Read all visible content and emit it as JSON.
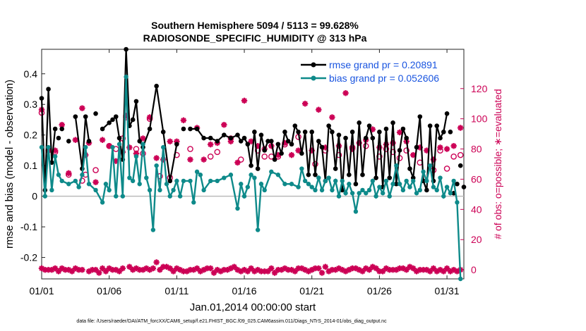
{
  "chart_data": {
    "type": "line",
    "title": "Southern Hemisphere 5094 / 5113 = 99.628%",
    "subtitle": "RADIOSONDE_SPECIFIC_HUMIDITY @ 313 hPa",
    "xlabel": "Jan.01,2014 00:00:00 start",
    "ylabel": "rmse and bias (model - observation)",
    "y2label": "# of obs: o=possible; ∗=evaluated",
    "footnote": "data file: /Users/raeder/DAI/ATM_forcXX/CAM6_setup/f.e21.FHIST_BGC.f09_025.CAM6assim.011/Diags_NTrS_2014-01/obs_diag_output.nc",
    "xlim": [
      0,
      31.25
    ],
    "ylim": [
      -0.27,
      0.48
    ],
    "y2lim": [
      -6,
      146
    ],
    "x_ticks": [
      0,
      5,
      10,
      15,
      20,
      25,
      30
    ],
    "x_tick_labels": [
      "01/01",
      "01/06",
      "01/11",
      "01/16",
      "01/21",
      "01/26",
      "01/31"
    ],
    "y_ticks": [
      -0.2,
      -0.1,
      0,
      0.1,
      0.2,
      0.3,
      0.4
    ],
    "y_tick_labels": [
      "-0.2",
      "-0.1",
      "0",
      "0.1",
      "0.2",
      "0.3",
      "0.4"
    ],
    "y2_ticks": [
      0,
      20,
      40,
      60,
      80,
      100,
      120
    ],
    "y2_tick_labels": [
      "0",
      "20",
      "40",
      "60",
      "80",
      "100",
      "120"
    ],
    "legend": {
      "position": "top-right"
    },
    "series": [
      {
        "name": "rmse grand pr = 0.20891",
        "color": "#000000",
        "axis": "left",
        "x": [
          0.0,
          0.25,
          0.5,
          0.75,
          1.0,
          1.25,
          1.5,
          2.0,
          2.5,
          3.0,
          3.25,
          3.5,
          4.0,
          4.5,
          5.0,
          5.25,
          5.5,
          5.75,
          6.0,
          6.25,
          6.5,
          6.75,
          7.0,
          7.25,
          7.5,
          8.0,
          8.5,
          9.0,
          9.5,
          10.0,
          10.5,
          11.0,
          11.5,
          12.0,
          12.5,
          13.0,
          13.5,
          14.0,
          14.5,
          14.75,
          15.0,
          15.25,
          15.5,
          15.75,
          16.0,
          16.25,
          16.5,
          16.75,
          17.0,
          17.25,
          17.5,
          17.75,
          18.0,
          18.25,
          18.5,
          18.75,
          19.0,
          19.25,
          19.5,
          19.75,
          20.0,
          20.25,
          20.5,
          20.75,
          21.0,
          21.25,
          21.5,
          21.75,
          22.0,
          22.25,
          22.5,
          22.75,
          23.0,
          23.25,
          23.5,
          23.75,
          24.0,
          24.25,
          24.5,
          24.75,
          25.0,
          25.25,
          25.5,
          25.75,
          26.0,
          26.25,
          26.5,
          26.75,
          27.0,
          27.25,
          27.5,
          27.75,
          28.0,
          28.25,
          28.5,
          28.75,
          29.0,
          29.25,
          29.5,
          29.75,
          30.0,
          30.25,
          30.5,
          30.75,
          31.0,
          31.25
        ],
        "values": [
          0.32,
          0.02,
          0.35,
          0.11,
          0.22,
          0.19,
          0.22,
          0.18,
          0.26,
          0.09,
          0.26,
          0.18,
          0.27,
          0.22,
          0.24,
          0.25,
          0.26,
          0.19,
          0.12,
          0.48,
          0.23,
          0.25,
          0.31,
          0.18,
          0.16,
          0.22,
          0.36,
          0.21,
          0.05,
          0.17,
          0.22,
          0.22,
          0.22,
          0.19,
          0.19,
          0.18,
          0.2,
          0.19,
          0.2,
          0.18,
          0.19,
          0.17,
          0.1,
          0.21,
          0.09,
          0.2,
          0.15,
          0.18,
          0.18,
          0.12,
          0.17,
          0.14,
          0.21,
          0.18,
          0.17,
          0.23,
          0.21,
          0.14,
          0.21,
          0.07,
          0.21,
          0.07,
          0.18,
          0.16,
          0.05,
          0.23,
          0.21,
          0.09,
          0.2,
          0.02,
          0.19,
          0.07,
          0.21,
          0.04,
          0.24,
          0.07,
          0.19,
          0.23,
          0.19,
          0.06,
          0.21,
          0.03,
          0.22,
          0.06,
          0.24,
          0.04,
          0.15,
          0.22,
          0.19,
          0.09,
          0.06,
          0.16,
          0.26,
          0.05,
          0.02,
          0.23,
          0.05,
          0.23,
          0.19,
          0.21,
          0.27,
          0.21,
          0.01,
          0.04,
          0.1,
          0.03
        ],
        "connected": [
          true,
          true,
          true,
          true,
          true,
          false,
          true,
          false,
          true,
          true,
          true,
          true,
          false,
          true,
          true,
          true,
          true,
          true,
          true,
          true,
          true,
          true,
          true,
          true,
          true,
          true,
          true,
          true,
          true,
          true,
          false,
          true,
          true,
          true,
          true,
          true,
          true,
          true,
          true,
          true,
          true,
          true,
          true,
          true,
          true,
          true,
          true,
          true,
          true,
          true,
          true,
          true,
          true,
          true,
          true,
          true,
          true,
          true,
          true,
          true,
          true,
          true,
          true,
          true,
          true,
          true,
          true,
          true,
          true,
          true,
          true,
          true,
          true,
          true,
          true,
          true,
          true,
          true,
          true,
          true,
          true,
          true,
          true,
          true,
          true,
          true,
          true,
          true,
          true,
          true,
          true,
          true,
          true,
          true,
          true,
          true,
          true,
          true,
          true,
          true,
          true,
          false,
          false,
          false,
          false,
          false
        ],
        "markers_only_from_index": 101
      },
      {
        "name": "bias grand pr = 0.052606",
        "color": "#0e8a8a",
        "axis": "left",
        "x": [
          0.0,
          0.25,
          0.5,
          0.75,
          1.0,
          1.25,
          1.5,
          2.0,
          2.5,
          2.75,
          3.0,
          3.25,
          3.5,
          4.0,
          4.5,
          4.75,
          5.0,
          5.25,
          5.5,
          5.75,
          6.0,
          6.25,
          6.5,
          6.75,
          7.0,
          7.25,
          7.5,
          7.75,
          8.0,
          8.25,
          8.5,
          8.75,
          9.0,
          9.25,
          9.5,
          9.75,
          10.0,
          10.25,
          10.5,
          11.0,
          11.25,
          11.5,
          11.75,
          12.0,
          12.5,
          13.0,
          13.5,
          14.0,
          14.5,
          14.75,
          15.0,
          15.25,
          15.5,
          15.75,
          16.0,
          16.25,
          16.5,
          17.0,
          17.5,
          18.0,
          18.5,
          19.0,
          19.25,
          19.5,
          19.75,
          20.0,
          20.25,
          20.5,
          20.75,
          21.0,
          21.25,
          21.5,
          21.75,
          22.0,
          22.25,
          22.5,
          22.75,
          23.0,
          23.25,
          23.5,
          23.75,
          24.0,
          24.25,
          24.5,
          24.75,
          25.0,
          25.25,
          25.5,
          25.75,
          26.0,
          26.25,
          26.5,
          26.75,
          27.0,
          27.25,
          27.5,
          27.75,
          28.0,
          28.25,
          28.5,
          28.75,
          29.0,
          29.25,
          29.5,
          29.75,
          30.0,
          30.25,
          30.5,
          30.75,
          31.0
        ],
        "values": [
          0.16,
          0.0,
          0.16,
          0.02,
          0.13,
          0.07,
          0.05,
          0.04,
          0.05,
          0.03,
          0.07,
          0.16,
          0.04,
          0.02,
          -0.02,
          0.04,
          0.02,
          0.16,
          0.0,
          0.17,
          0.0,
          0.39,
          0.06,
          0.05,
          0.13,
          0.04,
          0.17,
          0.06,
          0.02,
          -0.11,
          0.1,
          0.02,
          0.16,
          0.04,
          0.0,
          0.02,
          0.05,
          0.0,
          0.05,
          0.05,
          -0.02,
          0.08,
          0.07,
          0.02,
          0.05,
          0.05,
          0.06,
          0.07,
          -0.04,
          0.04,
          0.0,
          0.03,
          0.07,
          0.06,
          -0.11,
          0.04,
          0.02,
          0.08,
          0.07,
          0.04,
          0.04,
          0.03,
          0.09,
          0.05,
          0.04,
          0.03,
          0.02,
          0.06,
          0.02,
          0.05,
          0.06,
          0.02,
          0.05,
          0.0,
          0.05,
          0.01,
          0.04,
          0.01,
          -0.05,
          0.01,
          0.02,
          0.01,
          0.02,
          0.05,
          0.0,
          0.03,
          0.01,
          0.05,
          0.0,
          0.04,
          0.1,
          0.04,
          0.02,
          0.05,
          0.03,
          0.05,
          0.01,
          0.02,
          0.08,
          0.05,
          0.1,
          0.03,
          0.02,
          0.06,
          0.0,
          0.03,
          0.01,
          0.05,
          -0.02,
          -0.27
        ],
        "marker": "dot"
      },
      {
        "name": "obs evaluated / possible",
        "color": "#cc0055",
        "axis": "right",
        "possible_x": [
          0.0,
          1.0,
          2.0,
          3.0,
          3.25,
          4.0,
          5.0,
          5.5,
          6.0,
          6.25,
          7.0,
          7.5,
          8.0,
          8.75,
          9.5,
          10.0,
          11.0,
          12.5,
          13.0,
          14.0,
          14.75,
          16.0,
          16.5,
          17.0,
          17.5,
          18.0,
          19.0,
          20.25,
          21.0,
          22.0,
          23.0,
          24.0,
          25.0,
          25.5,
          26.0,
          26.5,
          27.0,
          28.0,
          29.0,
          29.5,
          30.0,
          30.5,
          31.0
        ],
        "possible_y": [
          104,
          78,
          63,
          59,
          63,
          66,
          82,
          80,
          87,
          101,
          80,
          77,
          100,
          62,
          61,
          76,
          80,
          75,
          78,
          87,
          73,
          79,
          75,
          75,
          75,
          83,
          88,
          70,
          79,
          76,
          81,
          82,
          75,
          80,
          78,
          74,
          79,
          71,
          66,
          79,
          67,
          75,
          76
        ],
        "evaluated_x": [
          0.0,
          0.5,
          1.0,
          1.5,
          2.0,
          2.5,
          3.0,
          3.25,
          3.5,
          4.0,
          4.5,
          5.0,
          5.5,
          6.0,
          6.25,
          6.5,
          7.0,
          7.5,
          8.0,
          8.5,
          9.0,
          9.5,
          10.0,
          10.5,
          11.0,
          11.5,
          12.0,
          12.5,
          13.0,
          13.5,
          14.0,
          14.5,
          15.0,
          15.5,
          16.0,
          16.5,
          17.0,
          17.5,
          18.0,
          18.5,
          19.0,
          19.5,
          20.0,
          20.5,
          21.0,
          21.5,
          22.0,
          22.5,
          23.0,
          23.5,
          24.0,
          24.5,
          25.0,
          25.5,
          26.0,
          26.5,
          27.0,
          27.5,
          28.0,
          28.5,
          29.0,
          29.5,
          30.0,
          30.5,
          31.0,
          0.25,
          0.75,
          1.25,
          1.75,
          2.25,
          2.75,
          3.75,
          4.25,
          4.75,
          5.25,
          5.75,
          6.75,
          7.25,
          7.75,
          8.25,
          8.75,
          9.25,
          9.75,
          10.25,
          10.75,
          11.25,
          11.75,
          12.25,
          12.75,
          13.25,
          13.75,
          14.25,
          14.75,
          15.25,
          15.75,
          16.25,
          16.75,
          17.25,
          17.75,
          18.25,
          18.75,
          19.25,
          19.75,
          20.25,
          20.75,
          21.25,
          21.75,
          22.25,
          22.75,
          23.25,
          23.75,
          24.25,
          24.75,
          25.25,
          25.75,
          26.25,
          26.75,
          27.25,
          27.75,
          28.25,
          28.75,
          29.25,
          29.75,
          30.25,
          30.75
        ],
        "evaluated_y": [
          106,
          79,
          79,
          96,
          64,
          86,
          107,
          76,
          84,
          58,
          86,
          82,
          72,
          78,
          102,
          81,
          77,
          87,
          101,
          74,
          73,
          85,
          85,
          99,
          73,
          94,
          73,
          83,
          84,
          96,
          85,
          71,
          112,
          85,
          82,
          80,
          82,
          76,
          84,
          76,
          79,
          110,
          79,
          106,
          81,
          101,
          82,
          117,
          80,
          84,
          86,
          93,
          81,
          83,
          84,
          91,
          85,
          76,
          81,
          79,
          73,
          81,
          80,
          82,
          94,
          0,
          0,
          -1,
          0,
          -1,
          0,
          0,
          -2,
          -1,
          0,
          -1,
          0,
          0,
          1,
          1,
          0,
          2,
          -1,
          0,
          -1,
          0,
          -1,
          1,
          -2,
          -1,
          0,
          2,
          -1,
          -1,
          -1,
          -1,
          -1,
          -2,
          0,
          0,
          -1,
          1,
          -1,
          1,
          -2,
          -1,
          0,
          0,
          0,
          1,
          -1,
          0,
          1,
          -1,
          0,
          0,
          1,
          2,
          -1,
          0,
          -1,
          -1,
          -1,
          -1,
          -1,
          -1
        ],
        "evaluated_low_x": [
          0.0,
          0.5,
          1.0,
          1.5,
          2.0,
          2.5,
          3.0,
          3.5,
          4.0,
          4.5,
          5.0,
          5.5,
          6.0,
          6.5,
          7.0,
          7.5,
          8.0,
          8.5,
          9.0,
          9.5,
          10.0,
          10.5,
          11.0,
          11.5,
          12.0,
          12.5,
          13.0,
          13.5,
          14.0,
          14.5,
          15.0,
          15.5,
          16.0,
          16.5,
          17.0,
          17.5,
          18.0,
          18.5,
          19.0,
          19.5,
          20.0,
          20.5,
          21.0,
          21.5,
          22.0,
          22.5,
          23.0,
          23.5,
          24.0,
          24.5,
          25.0,
          25.5,
          26.0,
          26.5,
          27.0,
          27.5,
          28.0,
          28.5,
          29.0,
          29.5,
          30.0,
          30.5,
          31.0
        ],
        "evaluated_low_y": [
          1,
          0,
          1,
          1,
          0,
          1,
          0,
          -1,
          0,
          1,
          1,
          0,
          1,
          2,
          1,
          0,
          0,
          5,
          2,
          1,
          1,
          -1,
          0,
          1,
          0,
          1,
          0,
          0,
          1,
          0,
          0,
          1,
          0,
          -1,
          1,
          0,
          1,
          0,
          1,
          0,
          0,
          1,
          2,
          0,
          1,
          -1,
          1,
          0,
          1,
          2,
          -1,
          1,
          0,
          1,
          0,
          1,
          0,
          0,
          1,
          0,
          1,
          0,
          0
        ]
      }
    ]
  }
}
